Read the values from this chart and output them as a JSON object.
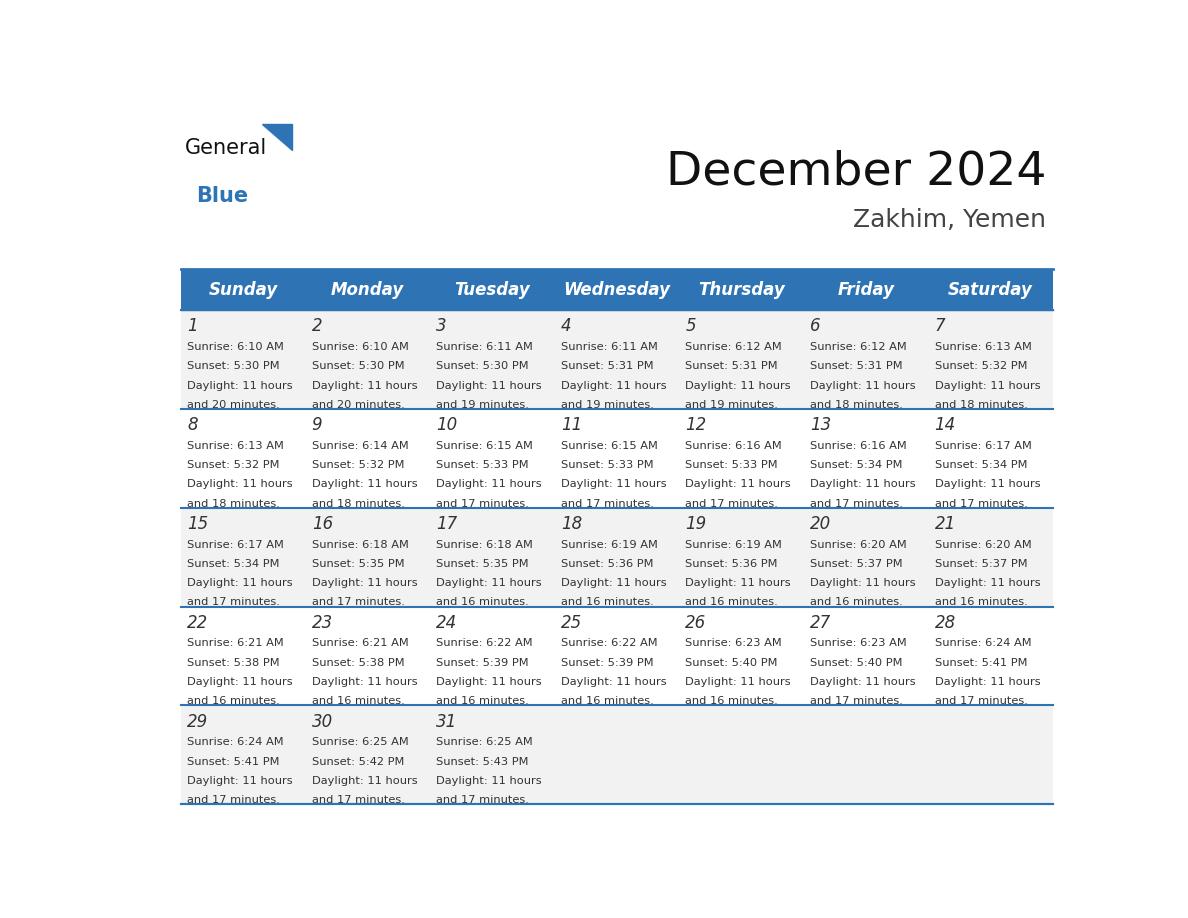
{
  "title": "December 2024",
  "subtitle": "Zakhim, Yemen",
  "days_of_week": [
    "Sunday",
    "Monday",
    "Tuesday",
    "Wednesday",
    "Thursday",
    "Friday",
    "Saturday"
  ],
  "header_bg": "#2E74B5",
  "header_text_color": "#FFFFFF",
  "row_bg_even": "#F2F2F2",
  "row_bg_odd": "#FFFFFF",
  "border_color": "#2E74B5",
  "text_color": "#333333",
  "day_number_color": "#333333",
  "calendar_data": [
    [
      {
        "day": 1,
        "sunrise": "6:10 AM",
        "sunset": "5:30 PM",
        "daylight": "11 hours and 20 minutes"
      },
      {
        "day": 2,
        "sunrise": "6:10 AM",
        "sunset": "5:30 PM",
        "daylight": "11 hours and 20 minutes"
      },
      {
        "day": 3,
        "sunrise": "6:11 AM",
        "sunset": "5:30 PM",
        "daylight": "11 hours and 19 minutes"
      },
      {
        "day": 4,
        "sunrise": "6:11 AM",
        "sunset": "5:31 PM",
        "daylight": "11 hours and 19 minutes"
      },
      {
        "day": 5,
        "sunrise": "6:12 AM",
        "sunset": "5:31 PM",
        "daylight": "11 hours and 19 minutes"
      },
      {
        "day": 6,
        "sunrise": "6:12 AM",
        "sunset": "5:31 PM",
        "daylight": "11 hours and 18 minutes"
      },
      {
        "day": 7,
        "sunrise": "6:13 AM",
        "sunset": "5:32 PM",
        "daylight": "11 hours and 18 minutes"
      }
    ],
    [
      {
        "day": 8,
        "sunrise": "6:13 AM",
        "sunset": "5:32 PM",
        "daylight": "11 hours and 18 minutes"
      },
      {
        "day": 9,
        "sunrise": "6:14 AM",
        "sunset": "5:32 PM",
        "daylight": "11 hours and 18 minutes"
      },
      {
        "day": 10,
        "sunrise": "6:15 AM",
        "sunset": "5:33 PM",
        "daylight": "11 hours and 17 minutes"
      },
      {
        "day": 11,
        "sunrise": "6:15 AM",
        "sunset": "5:33 PM",
        "daylight": "11 hours and 17 minutes"
      },
      {
        "day": 12,
        "sunrise": "6:16 AM",
        "sunset": "5:33 PM",
        "daylight": "11 hours and 17 minutes"
      },
      {
        "day": 13,
        "sunrise": "6:16 AM",
        "sunset": "5:34 PM",
        "daylight": "11 hours and 17 minutes"
      },
      {
        "day": 14,
        "sunrise": "6:17 AM",
        "sunset": "5:34 PM",
        "daylight": "11 hours and 17 minutes"
      }
    ],
    [
      {
        "day": 15,
        "sunrise": "6:17 AM",
        "sunset": "5:34 PM",
        "daylight": "11 hours and 17 minutes"
      },
      {
        "day": 16,
        "sunrise": "6:18 AM",
        "sunset": "5:35 PM",
        "daylight": "11 hours and 17 minutes"
      },
      {
        "day": 17,
        "sunrise": "6:18 AM",
        "sunset": "5:35 PM",
        "daylight": "11 hours and 16 minutes"
      },
      {
        "day": 18,
        "sunrise": "6:19 AM",
        "sunset": "5:36 PM",
        "daylight": "11 hours and 16 minutes"
      },
      {
        "day": 19,
        "sunrise": "6:19 AM",
        "sunset": "5:36 PM",
        "daylight": "11 hours and 16 minutes"
      },
      {
        "day": 20,
        "sunrise": "6:20 AM",
        "sunset": "5:37 PM",
        "daylight": "11 hours and 16 minutes"
      },
      {
        "day": 21,
        "sunrise": "6:20 AM",
        "sunset": "5:37 PM",
        "daylight": "11 hours and 16 minutes"
      }
    ],
    [
      {
        "day": 22,
        "sunrise": "6:21 AM",
        "sunset": "5:38 PM",
        "daylight": "11 hours and 16 minutes"
      },
      {
        "day": 23,
        "sunrise": "6:21 AM",
        "sunset": "5:38 PM",
        "daylight": "11 hours and 16 minutes"
      },
      {
        "day": 24,
        "sunrise": "6:22 AM",
        "sunset": "5:39 PM",
        "daylight": "11 hours and 16 minutes"
      },
      {
        "day": 25,
        "sunrise": "6:22 AM",
        "sunset": "5:39 PM",
        "daylight": "11 hours and 16 minutes"
      },
      {
        "day": 26,
        "sunrise": "6:23 AM",
        "sunset": "5:40 PM",
        "daylight": "11 hours and 16 minutes"
      },
      {
        "day": 27,
        "sunrise": "6:23 AM",
        "sunset": "5:40 PM",
        "daylight": "11 hours and 17 minutes"
      },
      {
        "day": 28,
        "sunrise": "6:24 AM",
        "sunset": "5:41 PM",
        "daylight": "11 hours and 17 minutes"
      }
    ],
    [
      {
        "day": 29,
        "sunrise": "6:24 AM",
        "sunset": "5:41 PM",
        "daylight": "11 hours and 17 minutes"
      },
      {
        "day": 30,
        "sunrise": "6:25 AM",
        "sunset": "5:42 PM",
        "daylight": "11 hours and 17 minutes"
      },
      {
        "day": 31,
        "sunrise": "6:25 AM",
        "sunset": "5:43 PM",
        "daylight": "11 hours and 17 minutes"
      },
      null,
      null,
      null,
      null
    ]
  ],
  "logo_triangle_color": "#2E74B5",
  "title_fontsize": 34,
  "subtitle_fontsize": 18,
  "header_fontsize": 12,
  "day_num_fontsize": 12,
  "cell_text_fontsize": 8.2
}
